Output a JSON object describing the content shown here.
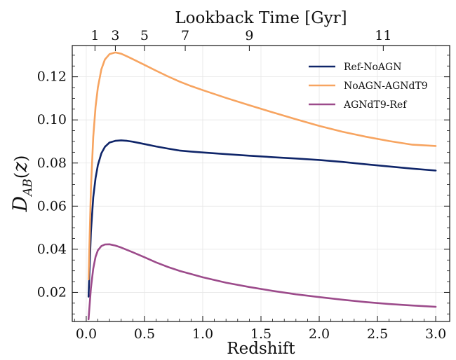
{
  "chart_data": {
    "type": "line",
    "xlabel": "Redshift",
    "ylabel": {
      "main": "D",
      "sub": "AB",
      "arg": "z"
    },
    "top_axis_label": "Lookback Time [Gyr]",
    "top_axis_ticks": [
      {
        "label": "1",
        "z": 0.075
      },
      {
        "label": "3",
        "z": 0.25
      },
      {
        "label": "5",
        "z": 0.5
      },
      {
        "label": "7",
        "z": 0.85
      },
      {
        "label": "9",
        "z": 1.4
      },
      {
        "label": "11",
        "z": 2.55
      }
    ],
    "xlim": [
      -0.12,
      3.12
    ],
    "ylim": [
      0.0065,
      0.1345
    ],
    "xticks": [
      0.0,
      0.5,
      1.0,
      1.5,
      2.0,
      2.5,
      3.0
    ],
    "xtick_labels": [
      "0.0",
      "0.5",
      "1.0",
      "1.5",
      "2.0",
      "2.5",
      "3.0"
    ],
    "yticks": [
      0.02,
      0.04,
      0.06,
      0.08,
      0.1,
      0.12
    ],
    "ytick_labels": [
      "0.02",
      "0.04",
      "0.06",
      "0.08",
      "0.10",
      "0.12"
    ],
    "grid": true,
    "legend_position": "top-right",
    "series": [
      {
        "name": "Ref-NoAGN",
        "color": "#0f2569",
        "x": [
          0.02,
          0.04,
          0.06,
          0.08,
          0.1,
          0.13,
          0.16,
          0.2,
          0.25,
          0.3,
          0.35,
          0.4,
          0.5,
          0.6,
          0.7,
          0.8,
          0.9,
          1.0,
          1.2,
          1.4,
          1.6,
          1.8,
          2.0,
          2.2,
          2.4,
          2.6,
          2.8,
          3.0
        ],
        "y": [
          0.018,
          0.048,
          0.064,
          0.073,
          0.079,
          0.0845,
          0.0875,
          0.0895,
          0.0903,
          0.0905,
          0.0903,
          0.0899,
          0.0888,
          0.0877,
          0.0867,
          0.0858,
          0.0853,
          0.0849,
          0.0841,
          0.0834,
          0.0827,
          0.0821,
          0.0814,
          0.0805,
          0.0794,
          0.0784,
          0.0774,
          0.0765
        ]
      },
      {
        "name": "NoAGN-AGNdT9",
        "color": "#f7a460",
        "x": [
          0.02,
          0.04,
          0.06,
          0.08,
          0.1,
          0.13,
          0.16,
          0.2,
          0.25,
          0.3,
          0.35,
          0.4,
          0.5,
          0.6,
          0.7,
          0.8,
          0.9,
          1.0,
          1.2,
          1.4,
          1.6,
          1.8,
          2.0,
          2.2,
          2.4,
          2.6,
          2.8,
          3.0
        ],
        "y": [
          0.026,
          0.068,
          0.092,
          0.106,
          0.115,
          0.1235,
          0.128,
          0.1305,
          0.1313,
          0.1307,
          0.1295,
          0.1282,
          0.1255,
          0.1228,
          0.1202,
          0.1178,
          0.1157,
          0.1138,
          0.1102,
          0.1068,
          0.1035,
          0.1003,
          0.0972,
          0.0945,
          0.0922,
          0.0902,
          0.0885,
          0.0879
        ]
      },
      {
        "name": "AGNdT9-Ref",
        "color": "#9c4b8b",
        "x": [
          0.02,
          0.04,
          0.06,
          0.08,
          0.1,
          0.13,
          0.16,
          0.2,
          0.25,
          0.3,
          0.35,
          0.4,
          0.5,
          0.6,
          0.7,
          0.8,
          0.9,
          1.0,
          1.2,
          1.4,
          1.6,
          1.8,
          2.0,
          2.2,
          2.4,
          2.6,
          2.8,
          3.0
        ],
        "y": [
          0.0075,
          0.022,
          0.031,
          0.0365,
          0.0395,
          0.0415,
          0.0422,
          0.0423,
          0.0417,
          0.0408,
          0.0397,
          0.0386,
          0.0363,
          0.0339,
          0.0318,
          0.03,
          0.0285,
          0.027,
          0.0245,
          0.0225,
          0.0207,
          0.0191,
          0.0178,
          0.0166,
          0.0155,
          0.0146,
          0.0139,
          0.0133
        ]
      }
    ]
  }
}
